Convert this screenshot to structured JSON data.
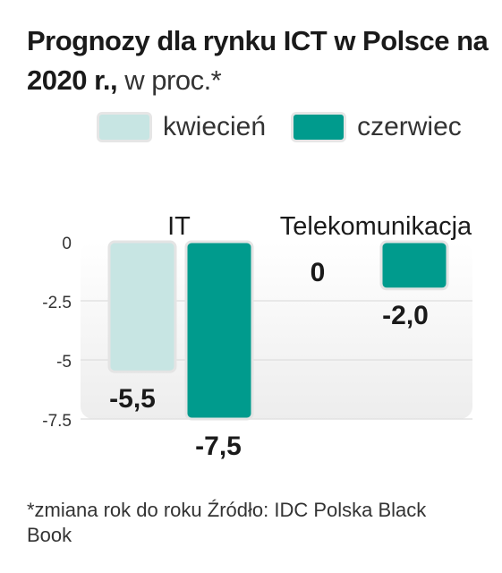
{
  "title": {
    "bold_part": "Prognozy dla rynku ICT  w Polsce na 2020 r.,",
    "light_part": " w proc.*"
  },
  "legend": [
    {
      "label": "kwiecień",
      "color": "#c7e5e3"
    },
    {
      "label": "czerwiec",
      "color": "#009b8d"
    }
  ],
  "chart_data": {
    "type": "bar",
    "title": "Prognozy dla rynku ICT  w Polsce na 2020 r., w proc.*",
    "categories": [
      "IT",
      "Telekomunikacja"
    ],
    "series": [
      {
        "name": "kwiecień",
        "values": [
          -5.5,
          0
        ],
        "value_labels": [
          "-5,5",
          "0"
        ]
      },
      {
        "name": "czerwiec",
        "values": [
          -7.5,
          -2.0
        ],
        "value_labels": [
          "-7,5",
          "-2,0"
        ]
      }
    ],
    "y_ticks": [
      0,
      -2.5,
      -5,
      -7.5
    ],
    "y_tick_labels": [
      "0",
      "-2.5",
      "-5",
      "-7.5"
    ],
    "ylim": [
      -7.5,
      0
    ],
    "grid": true
  },
  "footnote": "*zmiana rok do roku Źródło: IDC Polska Black Book"
}
